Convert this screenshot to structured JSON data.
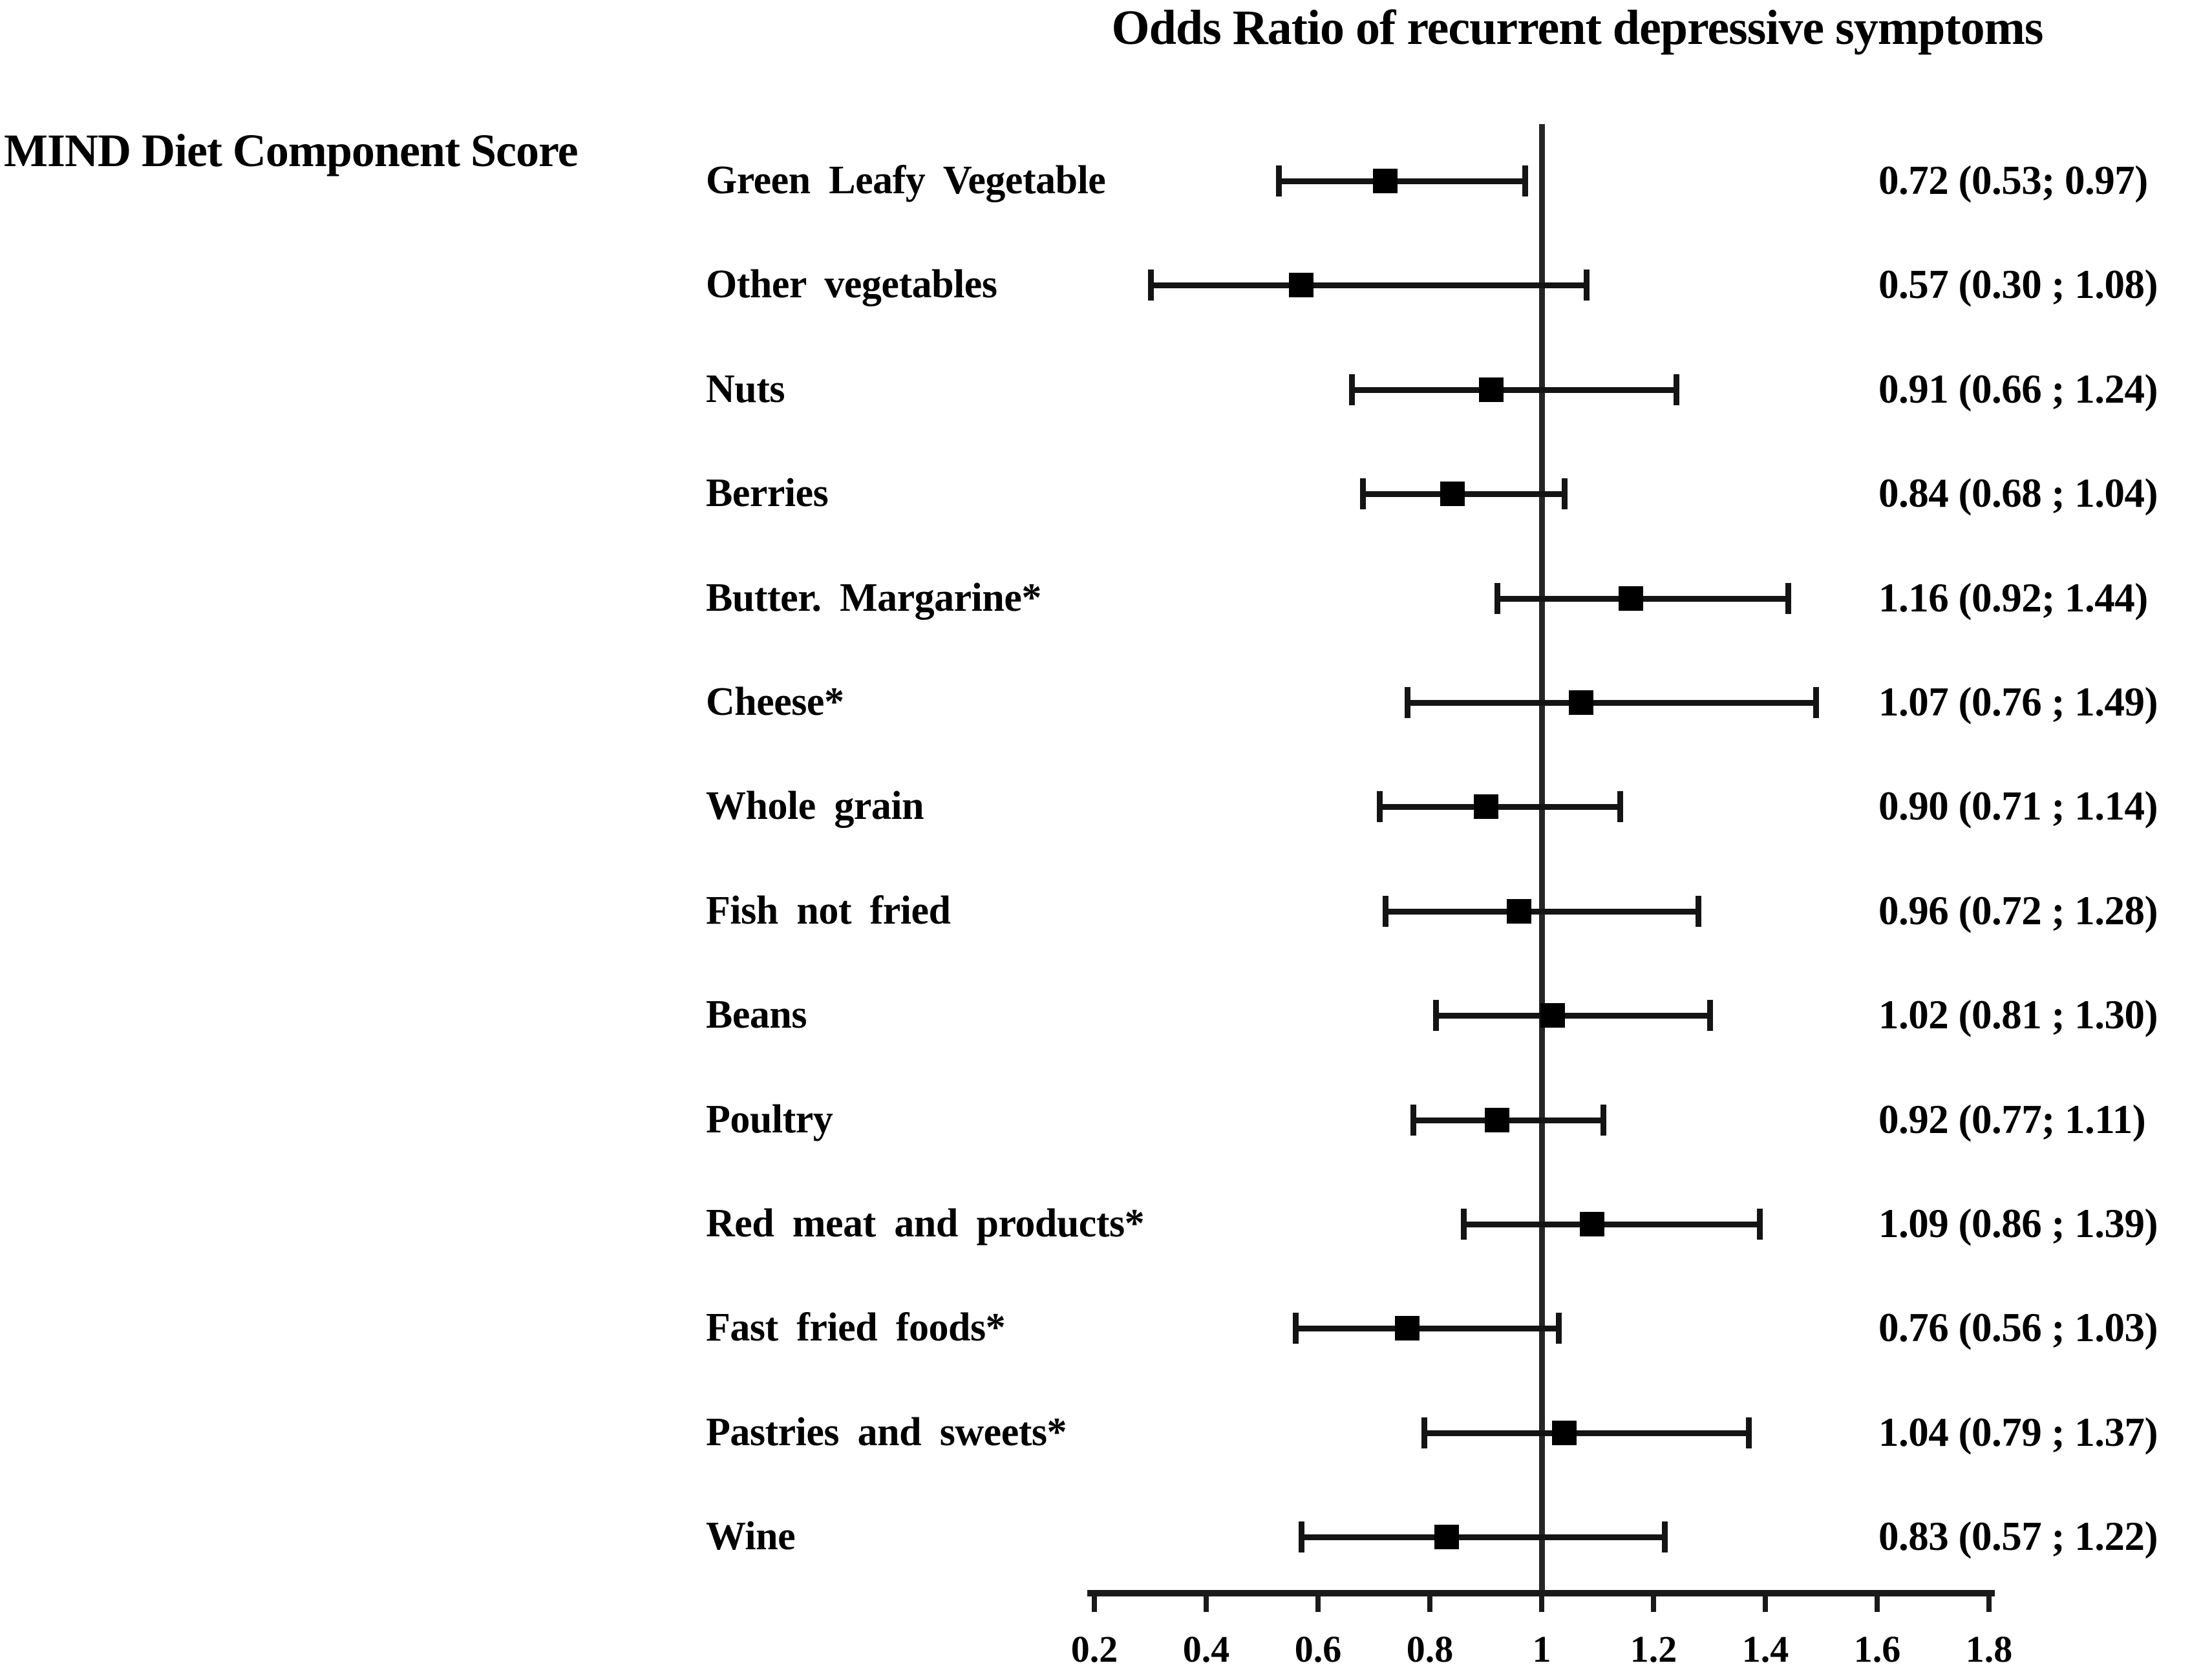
{
  "colors": {
    "foreground": "#000000",
    "background": "#ffffff"
  },
  "chart_data": {
    "type": "scatter",
    "subtype": "forest-plot",
    "title": "Odds Ratio of recurrent depressive symptoms",
    "group_label": "MIND Diet Component Score",
    "xlabel": "",
    "ylabel": "",
    "grid": false,
    "legend": null,
    "x_axis": {
      "range": [
        0.2,
        1.8
      ],
      "ticks": [
        0.2,
        0.4,
        0.6,
        0.8,
        1,
        1.2,
        1.4,
        1.6,
        1.8
      ],
      "tick_labels": [
        "0.2",
        "0.4",
        "0.6",
        "0.8",
        "1",
        "1.2",
        "1.4",
        "1.6",
        "1.8"
      ],
      "reference_line": 1
    },
    "rows": [
      {
        "label": "Green Leafy Vegetable",
        "or": 0.72,
        "ci_low": 0.53,
        "ci_high": 0.97,
        "display": "0.72 (0.53; 0.97)"
      },
      {
        "label": "Other vegetables",
        "or": 0.57,
        "ci_low": 0.3,
        "ci_high": 1.08,
        "display": "0.57 (0.30 ; 1.08)"
      },
      {
        "label": "Nuts",
        "or": 0.91,
        "ci_low": 0.66,
        "ci_high": 1.24,
        "display": "0.91 (0.66 ; 1.24)"
      },
      {
        "label": "Berries",
        "or": 0.84,
        "ci_low": 0.68,
        "ci_high": 1.04,
        "display": "0.84 (0.68 ; 1.04)"
      },
      {
        "label": "Butter. Margarine*",
        "or": 1.16,
        "ci_low": 0.92,
        "ci_high": 1.44,
        "display": "1.16 (0.92; 1.44)"
      },
      {
        "label": "Cheese*",
        "or": 1.07,
        "ci_low": 0.76,
        "ci_high": 1.49,
        "display": "1.07 (0.76 ; 1.49)"
      },
      {
        "label": "Whole grain",
        "or": 0.9,
        "ci_low": 0.71,
        "ci_high": 1.14,
        "display": "0.90 (0.71 ; 1.14)"
      },
      {
        "label": "Fish not fried",
        "or": 0.96,
        "ci_low": 0.72,
        "ci_high": 1.28,
        "display": "0.96 (0.72 ; 1.28)"
      },
      {
        "label": "Beans",
        "or": 1.02,
        "ci_low": 0.81,
        "ci_high": 1.3,
        "display": "1.02 (0.81 ; 1.30)"
      },
      {
        "label": "Poultry",
        "or": 0.92,
        "ci_low": 0.77,
        "ci_high": 1.11,
        "display": "0.92 (0.77; 1.11)"
      },
      {
        "label": "Red meat and products*",
        "or": 1.09,
        "ci_low": 0.86,
        "ci_high": 1.39,
        "display": "1.09 (0.86 ; 1.39)"
      },
      {
        "label": "Fast fried foods*",
        "or": 0.76,
        "ci_low": 0.56,
        "ci_high": 1.03,
        "display": "0.76 (0.56 ; 1.03)"
      },
      {
        "label": "Pastries and sweets*",
        "or": 1.04,
        "ci_low": 0.79,
        "ci_high": 1.37,
        "display": "1.04 (0.79 ; 1.37)"
      },
      {
        "label": "Wine",
        "or": 0.83,
        "ci_low": 0.57,
        "ci_high": 1.22,
        "display": "0.83 (0.57 ; 1.22)"
      }
    ]
  }
}
